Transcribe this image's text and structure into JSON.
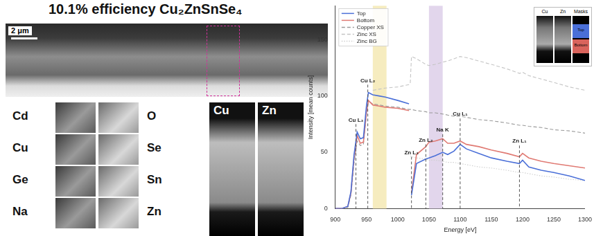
{
  "figure": {
    "title": "10.1% efficiency Cu₂ZnSnSe₄",
    "scale_bar": "2 μm",
    "element_maps": {
      "left": [
        "Cd",
        "Cu",
        "Ge",
        "Na"
      ],
      "right": [
        "O",
        "Se",
        "Sn",
        "Zn"
      ]
    },
    "zoom_maps": [
      "Cu",
      "Zn"
    ]
  },
  "inset": {
    "panels": [
      "Cu",
      "Zn",
      "Masks"
    ],
    "masks": [
      {
        "name": "Top",
        "color": "#4a6fd8"
      },
      {
        "name": "Bottom",
        "color": "#d9645c"
      }
    ]
  },
  "chart_data": {
    "type": "line",
    "x_label": "Energy [eV]",
    "y_label": "Intensity [mean counts]",
    "x": [
      900,
      910,
      920,
      925,
      930,
      935,
      940,
      945,
      950,
      953,
      960,
      970,
      980,
      1000,
      1018,
      1020,
      1022,
      1030,
      1045,
      1050,
      1060,
      1072,
      1080,
      1090,
      1100,
      1110,
      1130,
      1150,
      1175,
      1195,
      1200,
      1210,
      1230,
      1250,
      1275,
      1300
    ],
    "series": [
      {
        "name": "Top",
        "color": "#4a6fd8",
        "line_style": "solid",
        "values": [
          0,
          0,
          2,
          15,
          48,
          68,
          62,
          63,
          92,
          103,
          101,
          100,
          99,
          96,
          93,
          null,
          12,
          40,
          44,
          45,
          47,
          50,
          48,
          51,
          57,
          53,
          49,
          45,
          42,
          40,
          43,
          37,
          34,
          32,
          29,
          25
        ]
      },
      {
        "name": "Bottom",
        "color": "#e07a73",
        "line_style": "solid",
        "values": [
          0,
          0,
          2,
          14,
          45,
          65,
          58,
          59,
          86,
          96,
          92,
          91,
          90,
          89,
          87,
          null,
          14,
          48,
          55,
          59,
          60,
          62,
          58,
          58,
          60,
          57,
          55,
          52,
          49,
          46,
          49,
          45,
          42,
          40,
          38,
          36
        ]
      },
      {
        "name": "Copper XS",
        "color": "#9a9a9a",
        "line_style": "dashed",
        "values": [
          0,
          0,
          1,
          12,
          40,
          60,
          56,
          57,
          85,
          95,
          93,
          92,
          91,
          90,
          88,
          88,
          88,
          87,
          86,
          85,
          85,
          84,
          83,
          82,
          82,
          81,
          79,
          78,
          76,
          74,
          74,
          73,
          72,
          70,
          69,
          67
        ]
      },
      {
        "name": "Zinc XS",
        "color": "#c4c4c4",
        "line_style": "dashed",
        "values": [
          null,
          null,
          null,
          null,
          null,
          null,
          null,
          null,
          null,
          null,
          105,
          106,
          107,
          108,
          110,
          111,
          135,
          133,
          128,
          127,
          128,
          130,
          131,
          133,
          135,
          134,
          131,
          128,
          124,
          120,
          121,
          118,
          115,
          112,
          108,
          105
        ]
      },
      {
        "name": "Zinc BG",
        "color": "#cfcfcf",
        "line_style": "dotted",
        "values": [
          null,
          null,
          null,
          null,
          null,
          null,
          null,
          null,
          null,
          null,
          null,
          null,
          null,
          null,
          null,
          47,
          46,
          45,
          44,
          43,
          43,
          42,
          41,
          41,
          40,
          39,
          37,
          36,
          34,
          32,
          32,
          31,
          29,
          28,
          26,
          25
        ]
      }
    ],
    "xlim": [
      900,
      1300
    ],
    "xticks": [
      900,
      950,
      1000,
      1050,
      1100,
      1150,
      1200,
      1250,
      1300
    ],
    "ylim": [
      0,
      180
    ],
    "yticks": [
      0,
      50,
      100,
      150
    ],
    "grid": false,
    "legend": "upper left",
    "annotations": [
      {
        "label": "Cu L₃",
        "x": 933,
        "y": 75
      },
      {
        "label": "Cu L₂",
        "x": 952,
        "y": 110
      },
      {
        "label": "Zn L₃",
        "x": 1022,
        "y": 46
      },
      {
        "label": "Zn L₂",
        "x": 1045,
        "y": 57
      },
      {
        "label": "Na K",
        "x": 1072,
        "y": 66
      },
      {
        "label": "Cu L₁",
        "x": 1100,
        "y": 80
      },
      {
        "label": "Zn L₁",
        "x": 1195,
        "y": 56
      }
    ],
    "highlight_bands": [
      {
        "x": [
          960,
          982
        ],
        "color": "#f6ecbf"
      },
      {
        "x": [
          1050,
          1072
        ],
        "color": "#e2d6ec"
      }
    ]
  }
}
